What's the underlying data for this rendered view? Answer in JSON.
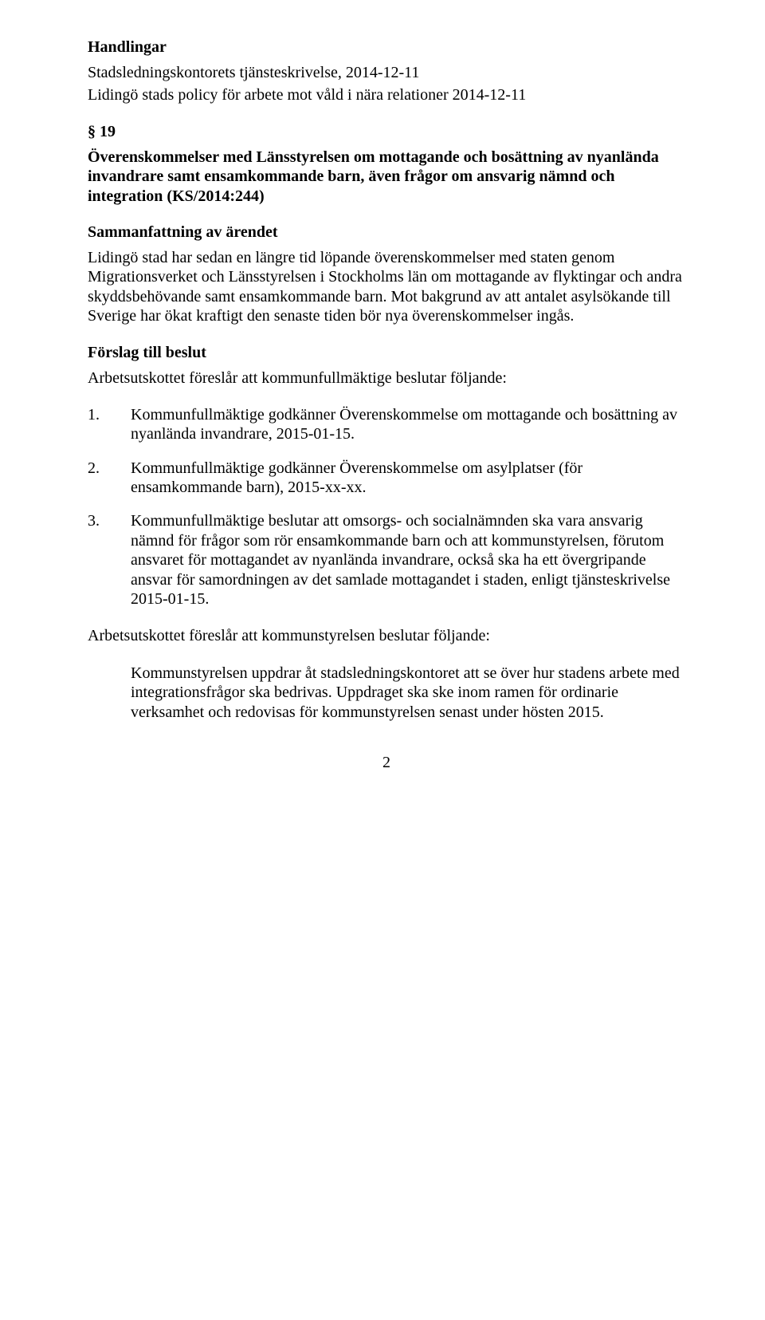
{
  "handlingar": {
    "heading": "Handlingar",
    "line1": "Stadsledningskontorets tjänsteskrivelse, 2014-12-11",
    "line2": "Lidingö stads policy för arbete mot våld i nära relationer 2014-12-11"
  },
  "section19": {
    "heading": "§ 19",
    "title": "Överenskommelser med Länsstyrelsen om mottagande och bosättning av nyanlända invandrare samt ensamkommande barn, även frågor om ansvarig nämnd och integration (KS/2014:244)"
  },
  "summary": {
    "heading": "Sammanfattning av ärendet",
    "body": "Lidingö stad har sedan en längre tid löpande överenskommelser med staten genom Migrationsverket och Länsstyrelsen i Stockholms län om mottagande av flyktingar och andra skyddsbehövande samt ensamkommande barn. Mot bakgrund av att antalet asylsökande till Sverige har ökat kraftigt den senaste tiden bör nya överenskommelser ingås."
  },
  "proposal": {
    "heading": "Förslag till beslut",
    "intro": "Arbetsutskottet föreslår att kommunfullmäktige beslutar följande:",
    "items": [
      {
        "num": "1.",
        "text": "Kommunfullmäktige godkänner Överenskommelse om mottagande och bosättning av nyanlända invandrare, 2015-01-15."
      },
      {
        "num": "2.",
        "text": "Kommunfullmäktige godkänner Överenskommelse om asylplatser (för ensamkommande barn), 2015-xx-xx."
      },
      {
        "num": "3.",
        "text": "Kommunfullmäktige beslutar att omsorgs- och socialnämnden ska vara ansvarig nämnd för frågor som rör ensamkommande barn och att kommunstyrelsen, förutom ansvaret för mottagandet av nyanlända invandrare, också ska ha ett övergripande ansvar för samordningen av det samlade mottagandet i staden, enligt tjänsteskrivelse 2015-01-15."
      }
    ],
    "intro2": "Arbetsutskottet föreslår att kommunstyrelsen beslutar följande:",
    "sub": "Kommunstyrelsen uppdrar åt stadsledningskontoret att se över hur stadens arbete med integrationsfrågor ska bedrivas. Uppdraget ska ske inom ramen för ordinarie verksamhet och redovisas för kommunstyrelsen senast under hösten 2015."
  },
  "pageNumber": "2"
}
